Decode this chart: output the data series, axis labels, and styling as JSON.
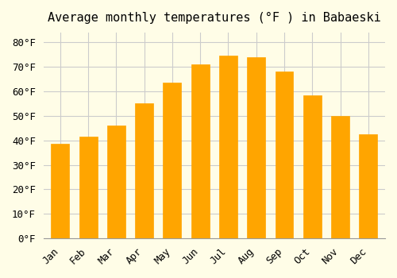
{
  "title": "Average monthly temperatures (°F ) in Babaeski",
  "months": [
    "Jan",
    "Feb",
    "Mar",
    "Apr",
    "May",
    "Jun",
    "Jul",
    "Aug",
    "Sep",
    "Oct",
    "Nov",
    "Dec"
  ],
  "values": [
    38.5,
    41.5,
    46.0,
    55.0,
    63.5,
    71.0,
    74.5,
    74.0,
    68.0,
    58.5,
    50.0,
    42.5
  ],
  "bar_color": "#FFA500",
  "bar_edge_color": "#FF8C00",
  "background_color": "#FFFDE7",
  "grid_color": "#CCCCCC",
  "ylim": [
    0,
    84
  ],
  "yticks": [
    0,
    10,
    20,
    30,
    40,
    50,
    60,
    70,
    80
  ],
  "title_fontsize": 11,
  "tick_fontsize": 9
}
